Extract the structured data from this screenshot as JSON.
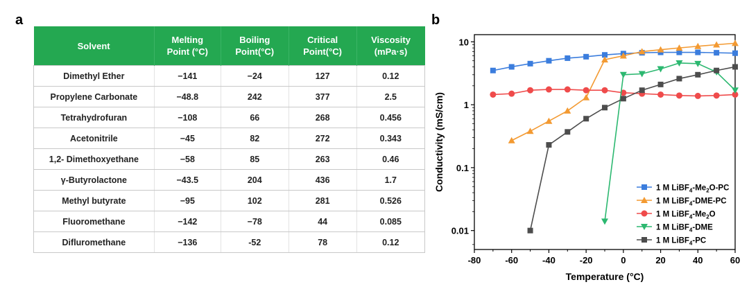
{
  "panel_labels": {
    "a": "a",
    "b": "b"
  },
  "table": {
    "headers": [
      "Solvent",
      "Melting\nPoint (°C)",
      "Boiling\nPoint(°C)",
      "Critical\nPoint(°C)",
      "Viscosity\n(mPa·s)"
    ],
    "rows": [
      [
        "Dimethyl Ether",
        "−141",
        "−24",
        "127",
        "0.12"
      ],
      [
        "Propylene Carbonate",
        "−48.8",
        "242",
        "377",
        "2.5"
      ],
      [
        "Tetrahydrofuran",
        "−108",
        "66",
        "268",
        "0.456"
      ],
      [
        "Acetonitrile",
        "−45",
        "82",
        "272",
        "0.343"
      ],
      [
        "1,2- Dimethoxyethane",
        "−58",
        "85",
        "263",
        "0.46"
      ],
      [
        "γ-Butyrolactone",
        "−43.5",
        "204",
        "436",
        "1.7"
      ],
      [
        "Methyl butyrate",
        "−95",
        "102",
        "281",
        "0.526"
      ],
      [
        "Fluoromethane",
        "−142",
        "−78",
        "44",
        "0.085"
      ],
      [
        "Difluromethane",
        "−136",
        "-52",
        "78",
        "0.12"
      ]
    ],
    "header_color": "#24a851"
  },
  "chart_data": {
    "type": "line",
    "xlabel": "Temperature (°C)",
    "ylabel": "Conductivity (mS/cm)",
    "xlim": [
      -80,
      60
    ],
    "ylim": [
      0.005,
      13
    ],
    "yscale": "log",
    "xticks": [
      "-80",
      "-60",
      "-40",
      "-20",
      "0",
      "20",
      "40",
      "60"
    ],
    "yticks": [
      "0.01",
      "0.1",
      "1",
      "10"
    ],
    "legend_position": "bottom-right",
    "series": [
      {
        "name": "1 M LiBF4-Me2O-PC",
        "label_parts": [
          "1 M LiBF",
          "4",
          "-Me",
          "2",
          "O-PC"
        ],
        "color": "#3b7ddd",
        "marker": "square",
        "x": [
          -70,
          -60,
          -50,
          -40,
          -30,
          -20,
          -10,
          0,
          10,
          20,
          30,
          40,
          50,
          60
        ],
        "y": [
          3.5,
          4.0,
          4.5,
          5.0,
          5.5,
          5.8,
          6.2,
          6.5,
          6.7,
          6.8,
          6.8,
          6.8,
          6.7,
          6.6
        ]
      },
      {
        "name": "1 M LiBF4-DME-PC",
        "label_parts": [
          "1 M LiBF",
          "4",
          "-DME-PC"
        ],
        "color": "#f39a32",
        "marker": "triangle-up",
        "x": [
          -60,
          -50,
          -40,
          -30,
          -20,
          -10,
          0,
          10,
          20,
          30,
          40,
          50,
          60
        ],
        "y": [
          0.27,
          0.38,
          0.55,
          0.8,
          1.3,
          5.2,
          6.0,
          7.0,
          7.5,
          8.0,
          8.5,
          9.0,
          9.5
        ]
      },
      {
        "name": "1 M LiBF4-Me2O",
        "label_parts": [
          "1 M LiBF",
          "4",
          "-Me",
          "2",
          "O"
        ],
        "color": "#ef4b4b",
        "marker": "circle",
        "x": [
          -70,
          -60,
          -50,
          -40,
          -30,
          -20,
          -10,
          0,
          10,
          20,
          30,
          40,
          50,
          60
        ],
        "y": [
          1.45,
          1.5,
          1.7,
          1.75,
          1.75,
          1.7,
          1.7,
          1.55,
          1.5,
          1.45,
          1.4,
          1.38,
          1.4,
          1.45
        ]
      },
      {
        "name": "1 M LiBF4-DME",
        "label_parts": [
          "1 M LiBF",
          "4",
          "-DME"
        ],
        "color": "#2cb870",
        "marker": "triangle-down",
        "x": [
          -10,
          0,
          10,
          20,
          30,
          40,
          50,
          60
        ],
        "y": [
          0.014,
          3.0,
          3.1,
          3.7,
          4.6,
          4.5,
          3.3,
          1.7
        ]
      },
      {
        "name": "1 M LiBF4-PC",
        "label_parts": [
          "1 M LiBF",
          "4",
          "-PC"
        ],
        "color": "#4d4d4d",
        "marker": "square",
        "x": [
          -50,
          -40,
          -30,
          -20,
          -10,
          0,
          10,
          20,
          30,
          40,
          50,
          60
        ],
        "y": [
          0.01,
          0.23,
          0.37,
          0.6,
          0.9,
          1.25,
          1.7,
          2.1,
          2.6,
          3.0,
          3.5,
          4.0
        ]
      }
    ]
  }
}
